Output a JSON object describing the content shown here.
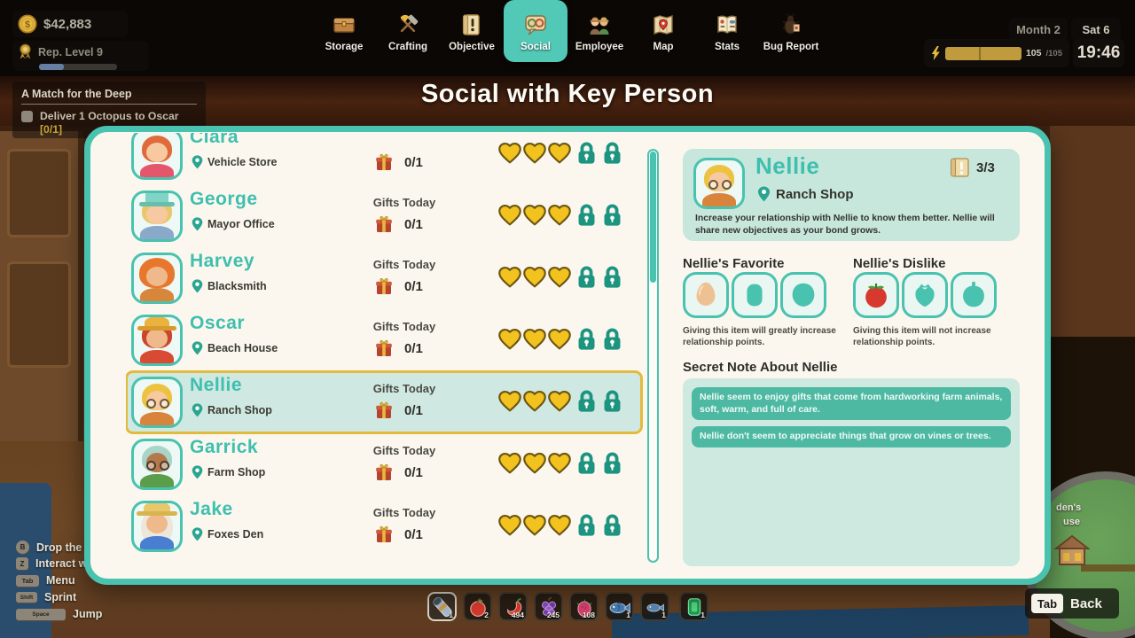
{
  "colors": {
    "accent_teal": "#49c2af",
    "lock_teal": "#1d9480",
    "heart_gold": "#f2c21e",
    "selected_border": "#e2ba3c",
    "note_teal": "#4db9a3"
  },
  "hud": {
    "money": "$42,883",
    "rep_label": "Rep. Level 9",
    "month": "Month 2",
    "day": "Sat 6",
    "energy_current": "105",
    "energy_max": "/105",
    "time": "19:46"
  },
  "quest": {
    "title": "A Match for the Deep",
    "objective": "Deliver 1 Octopus to Oscar",
    "progress": "[0/1]"
  },
  "nav": {
    "tabs": [
      {
        "label": "Storage",
        "icon": "chest-icon"
      },
      {
        "label": "Crafting",
        "icon": "tools-icon"
      },
      {
        "label": "Objective",
        "icon": "scroll-icon"
      },
      {
        "label": "Social",
        "icon": "speech-bubble-icon",
        "active": true
      },
      {
        "label": "Employee",
        "icon": "farmers-icon"
      },
      {
        "label": "Map",
        "icon": "map-icon"
      },
      {
        "label": "Stats",
        "icon": "book-icon"
      },
      {
        "label": "Bug Report",
        "icon": "bug-icon"
      }
    ]
  },
  "page_title": "Social with Key Person",
  "social": {
    "gifts_label": "Gifts Today",
    "rows": [
      {
        "name": "Clara",
        "location": "Vehicle Store",
        "gift_progress": "0/1",
        "hearts": 3,
        "locks": 2,
        "selected": false
      },
      {
        "name": "George",
        "location": "Mayor Office",
        "gift_progress": "0/1",
        "hearts": 3,
        "locks": 2,
        "selected": false
      },
      {
        "name": "Harvey",
        "location": "Blacksmith",
        "gift_progress": "0/1",
        "hearts": 3,
        "locks": 2,
        "selected": false
      },
      {
        "name": "Oscar",
        "location": "Beach House",
        "gift_progress": "0/1",
        "hearts": 3,
        "locks": 2,
        "selected": false
      },
      {
        "name": "Nellie",
        "location": "Ranch Shop",
        "gift_progress": "0/1",
        "hearts": 3,
        "locks": 2,
        "selected": true
      },
      {
        "name": "Garrick",
        "location": "Farm Shop",
        "gift_progress": "0/1",
        "hearts": 3,
        "locks": 2,
        "selected": false
      },
      {
        "name": "Jake",
        "location": "Foxes Den",
        "gift_progress": "0/1",
        "hearts": 3,
        "locks": 2,
        "selected": false
      }
    ]
  },
  "detail": {
    "name": "Nellie",
    "location": "Ranch Shop",
    "objectives_progress": "3/3",
    "description": "Increase your relationship with Nellie to know them better. Nellie will share new objectives as your bond grows.",
    "favorite_title": "Nellie's Favorite",
    "dislike_title": "Nellie's Dislike",
    "favorite_items": [
      "egg",
      "unknown",
      "unknown"
    ],
    "dislike_items": [
      "tomato",
      "unknown",
      "unknown"
    ],
    "favorite_caption": "Giving this item will greatly increase relationship points.",
    "dislike_caption": "Giving this item will not increase relationship points.",
    "secret_title": "Secret Note About Nellie",
    "notes": [
      "Nellie seem to enjoy gifts that come from hardworking farm animals, soft, warm, and full of care.",
      "Nellie don't seem to appreciate things that grow on vines or trees."
    ]
  },
  "hotbar": {
    "slots": [
      {
        "item": "flashlight",
        "count": "1",
        "selected": true
      },
      {
        "item": "apple",
        "count": "2"
      },
      {
        "item": "chili-pepper",
        "count": "494"
      },
      {
        "item": "grapes",
        "count": "245"
      },
      {
        "item": "dragonfruit",
        "count": "108"
      },
      {
        "item": "fish",
        "count": "1"
      },
      {
        "item": "fish",
        "count": "1"
      },
      {
        "item": "emerald",
        "count": "1"
      }
    ]
  },
  "hints": {
    "left": [
      {
        "key": "B",
        "label": "Drop the car"
      },
      {
        "key": "Z",
        "label": "Interact with"
      },
      {
        "key": "Tab",
        "label": "Menu"
      },
      {
        "key": "Shift",
        "label": "Sprint"
      },
      {
        "key": "Space",
        "label": "Jump"
      }
    ],
    "back": {
      "key": "Tab",
      "label": "Back"
    }
  },
  "minimap": {
    "labels": [
      "den's",
      "use"
    ]
  }
}
